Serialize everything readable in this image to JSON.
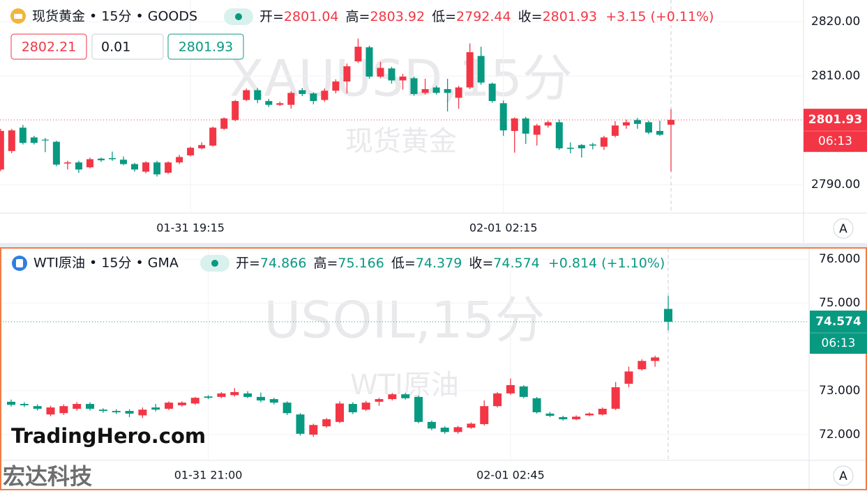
{
  "chart_data": [
    {
      "type": "candlestick",
      "symbol": "现货黄金 • 15分 • GOODS",
      "watermark": "XAUUSD,15分",
      "watermark_subtitle": "现货黄金",
      "ohlc_labels": [
        "开=",
        "高=",
        "低=",
        "收="
      ],
      "change": "+3.15 (+0.11%)",
      "countdown": "06:13",
      "order_buttons": [
        "2802.21",
        "0.01",
        "2801.93"
      ],
      "up_color": "#f23645",
      "down_color": "#089981",
      "grid": true,
      "ylim": [
        2784.9,
        2824.0
      ],
      "yticks": [
        {
          "value": 2820,
          "label": "2820.00"
        },
        {
          "value": 2810,
          "label": "2810.00"
        },
        {
          "value": 2790,
          "label": "2790.00"
        }
      ],
      "categories": [
        null,
        null,
        null,
        null,
        null,
        null,
        null,
        null,
        null,
        null,
        null,
        null,
        null,
        null,
        null,
        null,
        null,
        "01-31 19:15",
        null,
        null,
        null,
        null,
        null,
        null,
        null,
        null,
        null,
        null,
        null,
        null,
        null,
        null,
        null,
        null,
        null,
        null,
        null,
        null,
        null,
        null,
        null,
        null,
        null,
        null,
        null,
        "02-01 02:15",
        null,
        null,
        null,
        null,
        null,
        null,
        null,
        null,
        null,
        null,
        null,
        null,
        null,
        null,
        null
      ],
      "open": [
        2792.8,
        2796.2,
        2800.5,
        2798.7,
        2798.3,
        2797.9,
        2793.9,
        2794.1,
        2793.2,
        2794.8,
        2794.9,
        2794.6,
        2793.8,
        2792.4,
        2794.1,
        2792.2,
        2794.1,
        2795.4,
        2796.7,
        2797.2,
        2800.3,
        2801.9,
        2805.6,
        2807.4,
        2805.4,
        2804.7,
        2804.7,
        2807.4,
        2806.8,
        2805.6,
        2807.3,
        2809.0,
        2812.7,
        2815.3,
        2809.9,
        2811.4,
        2809.2,
        2809.6,
        2806.9,
        2807.9,
        2807.6,
        2806.0,
        2807.9,
        2813.7,
        2808.6,
        2805.0,
        2799.9,
        2802.2,
        2799.2,
        2800.9,
        2801.5,
        2796.8,
        2797.3,
        2797.4,
        2797.0,
        2799.0,
        2800.9,
        2801.9,
        2801.5,
        2799.9,
        2801.04
      ],
      "high": [
        2800.3,
        2800.3,
        2801.0,
        2799.0,
        2798.6,
        2798.1,
        2794.4,
        2794.4,
        2795.0,
        2795.0,
        2796.1,
        2795.2,
        2794.0,
        2794.3,
        2794.4,
        2794.3,
        2795.5,
        2797.0,
        2797.8,
        2800.7,
        2802.4,
        2805.6,
        2807.7,
        2807.8,
        2805.8,
        2805.3,
        2807.2,
        2807.8,
        2807.0,
        2807.7,
        2809.4,
        2812.3,
        2816.9,
        2815.6,
        2812.6,
        2811.7,
        2810.4,
        2809.9,
        2809.5,
        2808.2,
        2809.5,
        2808.2,
        2816.0,
        2815.4,
        2808.8,
        2805.5,
        2802.4,
        2802.5,
        2801.2,
        2801.8,
        2802.0,
        2797.8,
        2797.5,
        2797.7,
        2799.0,
        2801.7,
        2802.0,
        2802.3,
        2801.8,
        2801.8,
        2803.92
      ],
      "low": [
        2792.5,
        2795.8,
        2797.4,
        2797.4,
        2796.0,
        2793.4,
        2792.8,
        2792.2,
        2793.0,
        2794.2,
        2794.4,
        2793.6,
        2792.4,
        2792.1,
        2791.5,
        2792.0,
        2793.8,
        2795.2,
        2796.5,
        2797.0,
        2800.1,
        2801.7,
        2805.4,
        2805.0,
        2804.3,
        2804.5,
        2804.0,
        2806.3,
        2804.8,
        2805.3,
        2806.8,
        2806.8,
        2812.4,
        2809.5,
        2809.6,
        2808.6,
        2807.5,
        2806.4,
        2806.6,
        2806.6,
        2803.5,
        2804.0,
        2807.6,
        2808.4,
        2805.1,
        2799.0,
        2795.9,
        2797.5,
        2797.2,
        2800.5,
        2796.4,
        2795.8,
        2795.0,
        2796.5,
        2796.4,
        2798.7,
        2800.3,
        2800.3,
        2799.3,
        2799.0,
        2792.44
      ],
      "close": [
        2799.9,
        2800.0,
        2797.7,
        2797.7,
        2798.2,
        2793.7,
        2794.1,
        2792.8,
        2794.7,
        2794.5,
        2794.7,
        2793.8,
        2792.8,
        2794.1,
        2791.9,
        2794.1,
        2795.1,
        2796.8,
        2797.3,
        2800.5,
        2802.2,
        2805.4,
        2807.4,
        2805.6,
        2804.7,
        2805.0,
        2806.9,
        2806.7,
        2805.4,
        2807.3,
        2809.0,
        2811.8,
        2815.4,
        2809.9,
        2811.5,
        2809.2,
        2809.9,
        2806.7,
        2807.6,
        2806.9,
        2806.9,
        2807.9,
        2814.4,
        2808.8,
        2805.4,
        2800.0,
        2802.2,
        2799.4,
        2800.9,
        2801.5,
        2796.7,
        2796.6,
        2796.7,
        2797.2,
        2798.7,
        2800.9,
        2801.5,
        2801.2,
        2799.6,
        2799.2,
        2801.93
      ]
    },
    {
      "type": "candlestick",
      "symbol": "WTI原油 • 15分 • GMA",
      "watermark": "USOIL,15分",
      "watermark_subtitle": "WTI原油",
      "ohlc_labels": [
        "开=",
        "高=",
        "低=",
        "收="
      ],
      "change": "+0.814 (+1.10%)",
      "countdown": "06:13",
      "up_color": "#f23645",
      "down_color": "#089981",
      "grid": true,
      "ylim": [
        71.43,
        76.24
      ],
      "yticks": [
        {
          "value": 76,
          "label": "76.000"
        },
        {
          "value": 75,
          "label": "75.000"
        },
        {
          "value": 73,
          "label": "73.000"
        },
        {
          "value": 72,
          "label": "72.000"
        }
      ],
      "categories": [
        null,
        null,
        null,
        null,
        null,
        null,
        null,
        null,
        null,
        null,
        null,
        null,
        null,
        null,
        null,
        "01-31 21:00",
        null,
        null,
        null,
        null,
        null,
        null,
        null,
        null,
        null,
        null,
        null,
        null,
        null,
        null,
        null,
        null,
        null,
        null,
        null,
        null,
        null,
        null,
        "02-01 02:45",
        null,
        null,
        null,
        null,
        null,
        null,
        null,
        null,
        null,
        null,
        null,
        null
      ],
      "open": [
        72.75,
        72.7,
        72.65,
        72.46,
        72.49,
        72.59,
        72.7,
        72.57,
        72.54,
        72.54,
        72.44,
        72.62,
        72.59,
        72.67,
        72.71,
        72.87,
        72.86,
        72.9,
        72.94,
        72.86,
        72.81,
        72.73,
        72.46,
        72.0,
        72.19,
        72.29,
        72.7,
        72.57,
        72.75,
        72.81,
        72.92,
        72.86,
        72.29,
        72.16,
        72.06,
        72.16,
        72.24,
        72.65,
        72.94,
        73.1,
        72.83,
        72.48,
        72.4,
        72.35,
        72.44,
        72.46,
        72.59,
        73.16,
        73.49,
        73.68,
        74.866
      ],
      "high": [
        72.8,
        72.74,
        72.69,
        72.66,
        72.69,
        72.74,
        72.74,
        72.6,
        72.58,
        72.58,
        72.62,
        72.7,
        72.76,
        72.76,
        72.86,
        72.9,
        72.97,
        73.06,
        72.99,
        72.96,
        72.84,
        72.76,
        72.49,
        72.25,
        72.38,
        72.76,
        72.74,
        72.77,
        72.84,
        72.95,
        72.95,
        72.89,
        72.32,
        72.19,
        72.2,
        72.28,
        72.78,
        72.97,
        73.28,
        73.13,
        72.86,
        72.52,
        72.43,
        72.44,
        72.51,
        72.62,
        73.2,
        73.55,
        73.72,
        73.8,
        75.166
      ],
      "low": [
        72.64,
        72.63,
        72.55,
        72.42,
        72.45,
        72.55,
        72.55,
        72.5,
        72.47,
        72.4,
        72.38,
        72.53,
        72.56,
        72.64,
        72.68,
        72.81,
        72.83,
        72.87,
        72.83,
        72.74,
        72.69,
        72.45,
        71.98,
        71.95,
        72.16,
        72.26,
        72.47,
        72.54,
        72.66,
        72.78,
        72.8,
        72.26,
        72.1,
        72.02,
        72.02,
        72.13,
        72.21,
        72.62,
        72.91,
        72.83,
        72.48,
        72.4,
        72.32,
        72.33,
        72.42,
        72.44,
        72.56,
        73.08,
        73.46,
        73.55,
        74.379
      ],
      "close": [
        72.68,
        72.67,
        72.59,
        72.62,
        72.65,
        72.7,
        72.59,
        72.54,
        72.51,
        72.48,
        72.57,
        72.57,
        72.73,
        72.73,
        72.84,
        72.84,
        72.94,
        72.97,
        72.86,
        72.78,
        72.73,
        72.49,
        72.02,
        72.22,
        72.35,
        72.71,
        72.51,
        72.73,
        72.81,
        72.92,
        72.83,
        72.29,
        72.14,
        72.06,
        72.17,
        72.25,
        72.65,
        72.94,
        73.13,
        72.86,
        72.51,
        72.43,
        72.35,
        72.41,
        72.48,
        72.59,
        73.08,
        73.44,
        73.68,
        73.76,
        74.574
      ]
    }
  ],
  "branding": {
    "logo": "TradingHero.com",
    "corner_mark": "宏达科技"
  },
  "buttons": [
    "A",
    "A"
  ]
}
